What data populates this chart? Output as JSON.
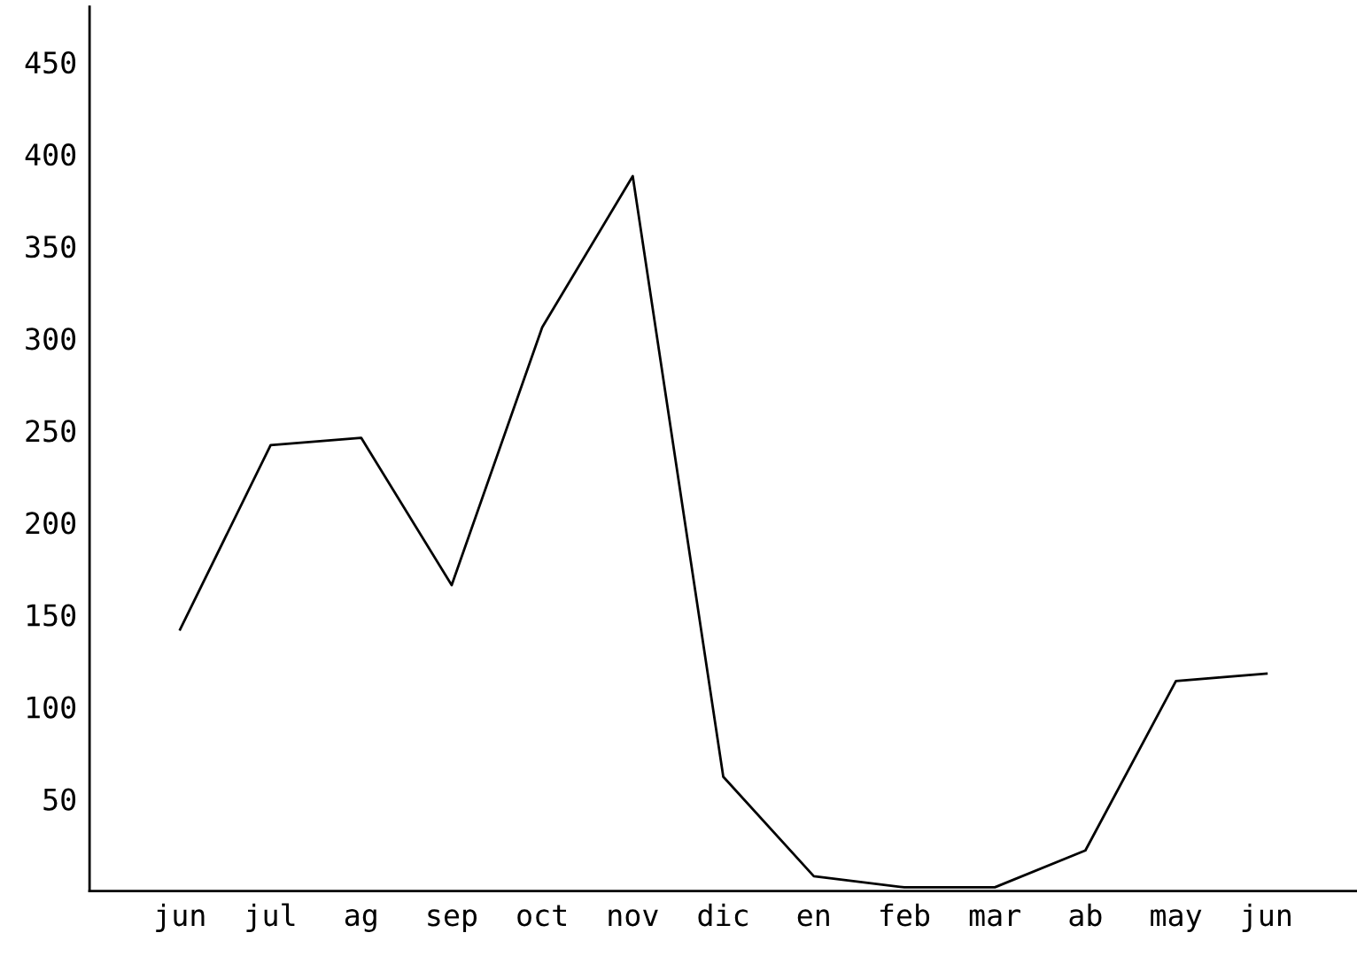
{
  "chart_data": {
    "type": "line",
    "categories": [
      "jun",
      "jul",
      "ag",
      "sep",
      "oct",
      "nov",
      "dic",
      "en",
      "feb",
      "mar",
      "ab",
      "may",
      "jun"
    ],
    "series": [
      {
        "color": "#000000",
        "values": [
          142,
          242,
          246,
          166,
          306,
          388,
          62,
          8,
          2,
          2,
          22,
          114,
          118
        ]
      }
    ],
    "ylim": [
      0,
      480
    ],
    "yticks": [
      50,
      100,
      150,
      200,
      250,
      300,
      350,
      400,
      450
    ],
    "grid": false,
    "legend": false,
    "marker": "none",
    "line_style": "solid"
  }
}
